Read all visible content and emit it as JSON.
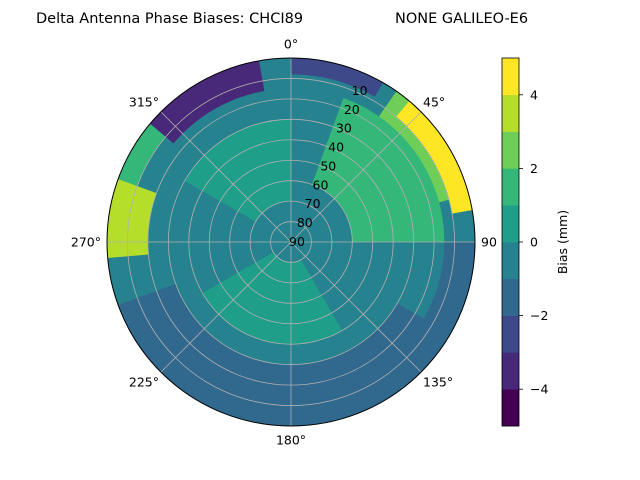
{
  "chart_data": {
    "type": "heatmap",
    "projection": "polar",
    "title_left": "Delta Antenna Phase Biases: CHCI89",
    "title_right": "NONE GALILEO-E6",
    "angular_axis": {
      "zero_location": "N",
      "direction": "clockwise",
      "tick_labels": [
        {
          "deg": 0,
          "text": "0°"
        },
        {
          "deg": 45,
          "text": "45°"
        },
        {
          "deg": 90,
          "text": "90"
        },
        {
          "deg": 135,
          "text": "135°"
        },
        {
          "deg": 180,
          "text": "180°"
        },
        {
          "deg": 225,
          "text": "225°"
        },
        {
          "deg": 270,
          "text": "270°"
        },
        {
          "deg": 315,
          "text": "315°"
        }
      ]
    },
    "radial_axis": {
      "range": [
        0,
        90
      ],
      "ticks": [
        10,
        20,
        30,
        40,
        50,
        60,
        70,
        80,
        90
      ],
      "tick_labels": [
        "10",
        "20",
        "30",
        "40",
        "50",
        "60",
        "70",
        "80",
        "90"
      ]
    },
    "grid": true,
    "colorbar": {
      "label": "Bias (mm)",
      "range": [
        -5,
        5
      ],
      "levels": [
        -5,
        -4,
        -3,
        -2,
        -1,
        0,
        1,
        2,
        3,
        4,
        5
      ],
      "ticks": [
        -4,
        -2,
        0,
        2,
        4
      ],
      "tick_labels": [
        "−4",
        "−2",
        "0",
        "2",
        "4"
      ],
      "colors": [
        "#440154",
        "#482878",
        "#3e4989",
        "#31688e",
        "#26828e",
        "#1f9e89",
        "#35b779",
        "#6ece58",
        "#b5de2b",
        "#fde725"
      ]
    },
    "field_regions": [
      {
        "az": [
          120,
          250
        ],
        "elev": [
          0,
          30
        ],
        "bias": -1.5
      },
      {
        "az": [
          90,
          170
        ],
        "elev": [
          0,
          15
        ],
        "bias": -1.5
      },
      {
        "az": [
          275,
          340
        ],
        "elev": [
          0,
          10
        ],
        "bias": 1.5
      },
      {
        "az": [
          265,
          290
        ],
        "elev": [
          0,
          20
        ],
        "bias": 3.5
      },
      {
        "az": [
          35,
          75
        ],
        "elev": [
          0,
          25
        ],
        "bias": 2.5
      },
      {
        "az": [
          40,
          80
        ],
        "elev": [
          0,
          10
        ],
        "bias": 4.5
      },
      {
        "az": [
          310,
          350
        ],
        "elev": [
          0,
          15
        ],
        "bias": -3.5
      },
      {
        "az": [
          0,
          30
        ],
        "elev": [
          0,
          8
        ],
        "bias": -2.5
      },
      {
        "az": [
          20,
          90
        ],
        "elev": [
          15,
          60
        ],
        "bias": 1.5
      },
      {
        "az": [
          300,
          360
        ],
        "elev": [
          30,
          70
        ],
        "bias": 0.5
      },
      {
        "az": [
          150,
          240
        ],
        "elev": [
          40,
          80
        ],
        "bias": 0.5
      }
    ]
  }
}
